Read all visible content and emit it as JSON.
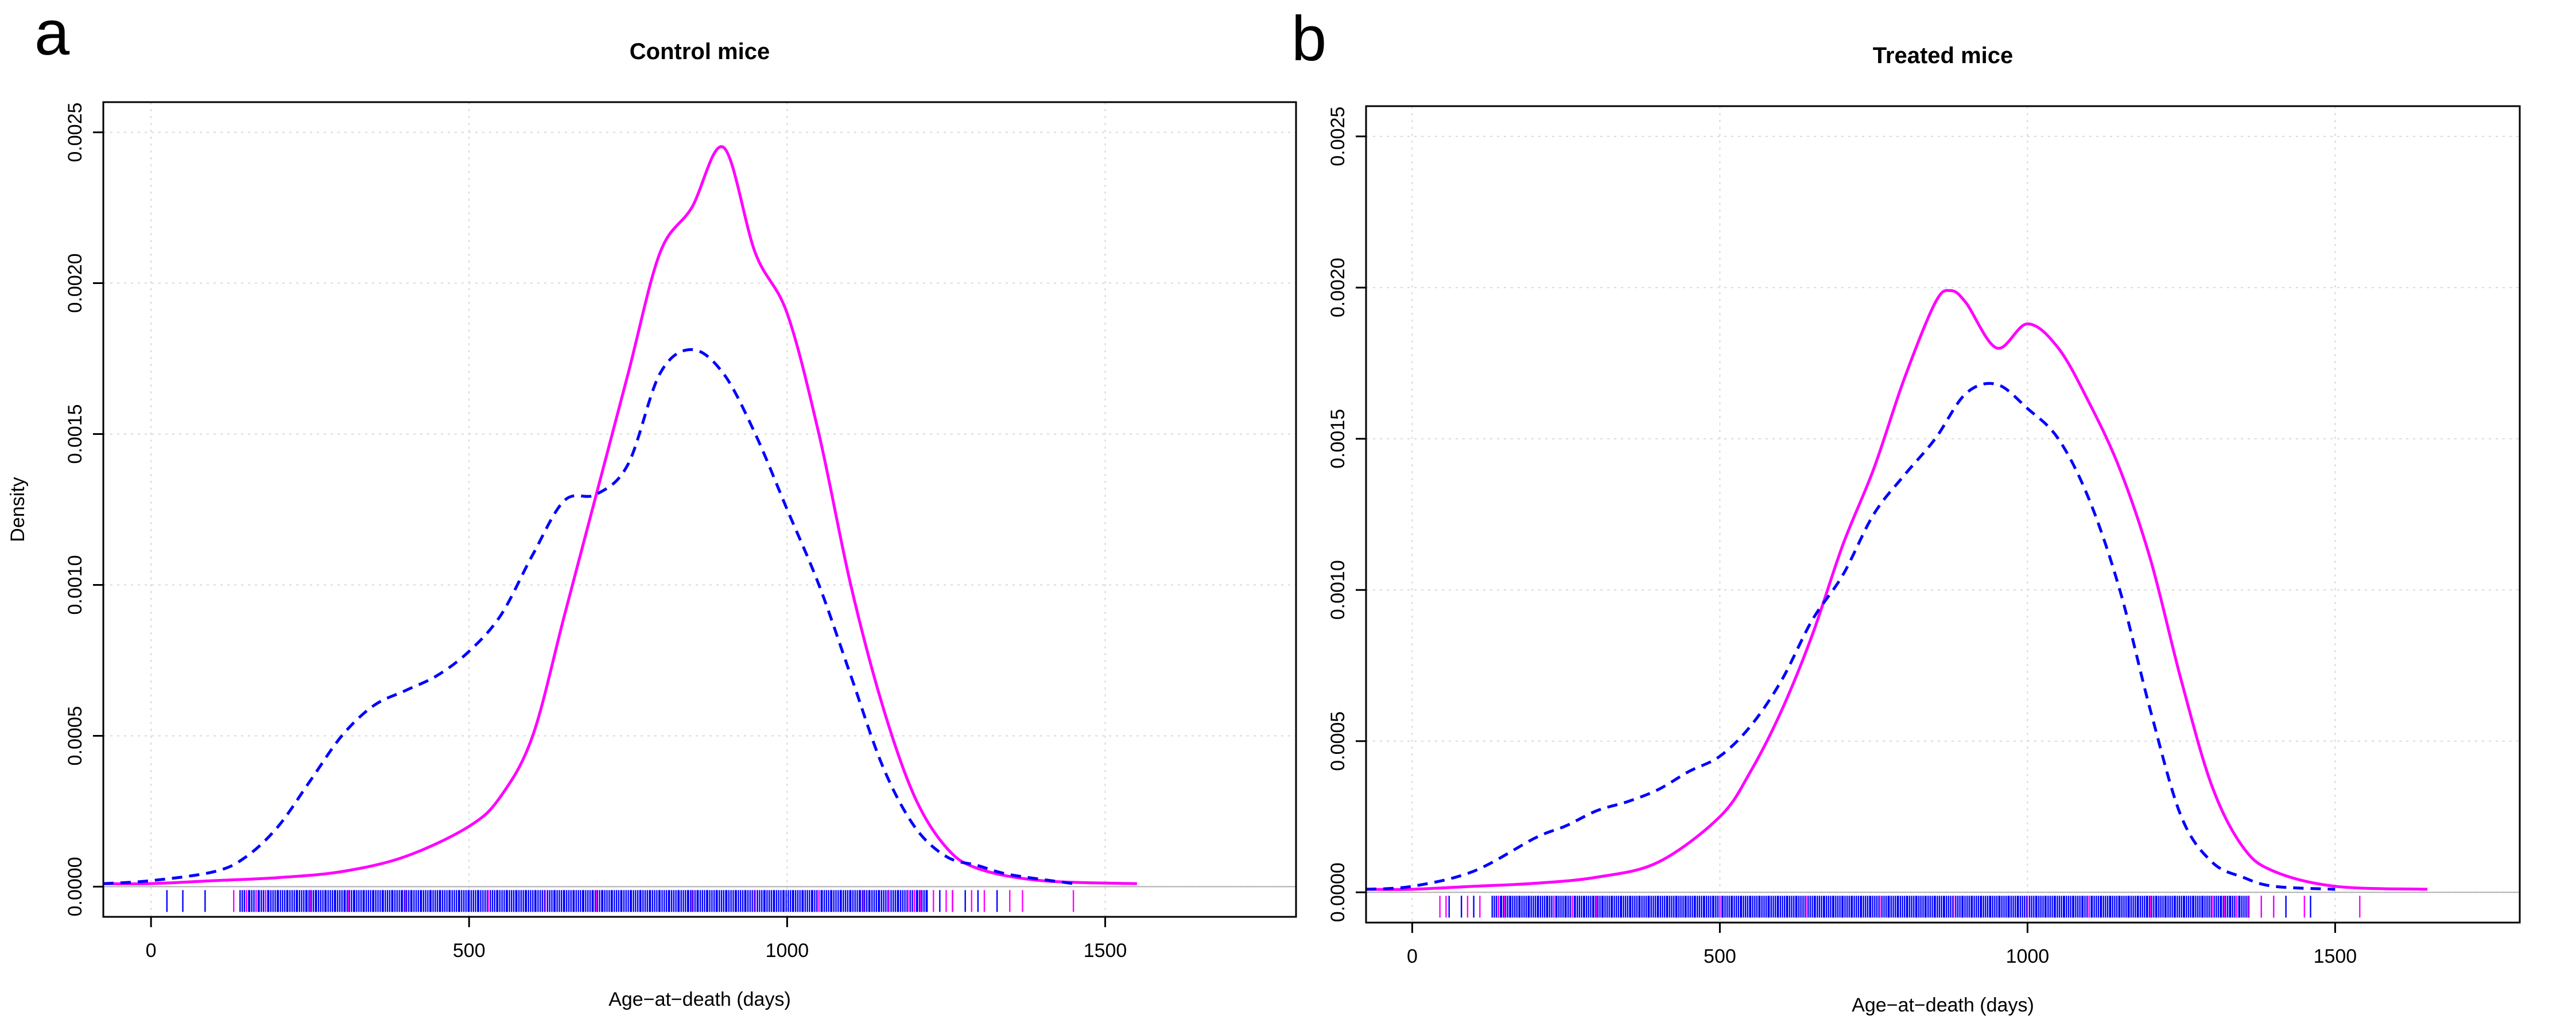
{
  "chart_data": [
    {
      "panel": "a",
      "type": "line",
      "title": "Control mice",
      "xlabel": "Age−at−death (days)",
      "ylabel": "Density",
      "xlim": [
        -75,
        1800
      ],
      "ylim": [
        -0.0001,
        0.0026
      ],
      "xticks": [
        0,
        500,
        1000,
        1500
      ],
      "yticks": [
        "0.0000",
        "0.0005",
        "0.0010",
        "0.0015",
        "0.0020",
        "0.0025"
      ],
      "grid": true,
      "series": [
        {
          "color": "#ff00ff",
          "style": "solid",
          "x": [
            -75,
            0,
            100,
            200,
            300,
            400,
            500,
            550,
            600,
            650,
            700,
            750,
            800,
            850,
            900,
            950,
            1000,
            1050,
            1100,
            1150,
            1200,
            1250,
            1300,
            1400,
            1550
          ],
          "y": [
            1e-05,
            1e-05,
            2e-05,
            3e-05,
            5e-05,
            0.0001,
            0.0002,
            0.0003,
            0.0005,
            0.0009,
            0.0013,
            0.0017,
            0.0021,
            0.00225,
            0.00245,
            0.0021,
            0.0019,
            0.0015,
            0.001,
            0.0006,
            0.0003,
            0.00013,
            6e-05,
            2e-05,
            1e-05
          ]
        },
        {
          "color": "#0000ff",
          "style": "dashed",
          "x": [
            -75,
            0,
            100,
            150,
            200,
            250,
            300,
            350,
            400,
            450,
            500,
            550,
            600,
            650,
            700,
            750,
            800,
            850,
            900,
            950,
            1000,
            1050,
            1100,
            1150,
            1200,
            1250,
            1300,
            1350,
            1450
          ],
          "y": [
            1e-05,
            2e-05,
            5e-05,
            0.0001,
            0.0002,
            0.00035,
            0.0005,
            0.0006,
            0.00065,
            0.0007,
            0.00078,
            0.0009,
            0.0011,
            0.00128,
            0.0013,
            0.0014,
            0.0017,
            0.00178,
            0.0017,
            0.0015,
            0.00125,
            0.001,
            0.0007,
            0.0004,
            0.0002,
            0.0001,
            7e-05,
            4e-05,
            1e-05
          ]
        }
      ],
      "rug": {
        "blue_range": [
          140,
          1220
        ],
        "blue_extra": [
          25,
          50,
          85,
          1240,
          1260,
          1280,
          1300,
          1330
        ],
        "magenta": [
          130,
          150,
          165,
          180,
          250,
          310,
          400,
          530,
          620,
          700,
          850,
          950,
          1050,
          1120,
          1160,
          1190,
          1200,
          1210,
          1230,
          1250,
          1260,
          1290,
          1310,
          1350,
          1370,
          1450
        ]
      }
    },
    {
      "panel": "b",
      "type": "line",
      "title": "Treated mice",
      "xlabel": "Age−at−death (days)",
      "ylabel": "",
      "xlim": [
        -75,
        1800
      ],
      "ylim": [
        -0.0001,
        0.0026
      ],
      "xticks": [
        0,
        500,
        1000,
        1500
      ],
      "yticks": [
        "0.0000",
        "0.0005",
        "0.0010",
        "0.0015",
        "0.0020",
        "0.0025"
      ],
      "grid": true,
      "series": [
        {
          "color": "#ff00ff",
          "style": "solid",
          "x": [
            -75,
            0,
            100,
            200,
            300,
            400,
            500,
            550,
            600,
            650,
            700,
            750,
            800,
            850,
            875,
            900,
            950,
            1000,
            1050,
            1100,
            1150,
            1200,
            1250,
            1300,
            1350,
            1400,
            1500,
            1650
          ],
          "y": [
            1e-05,
            1e-05,
            2e-05,
            3e-05,
            5e-05,
            0.0001,
            0.00025,
            0.0004,
            0.0006,
            0.00085,
            0.00115,
            0.0014,
            0.0017,
            0.00195,
            0.00199,
            0.00195,
            0.0018,
            0.00188,
            0.0018,
            0.00162,
            0.0014,
            0.0011,
            0.0007,
            0.00035,
            0.00015,
            7e-05,
            2e-05,
            1e-05
          ]
        },
        {
          "color": "#0000ff",
          "style": "dashed",
          "x": [
            -75,
            0,
            100,
            200,
            250,
            300,
            350,
            400,
            450,
            500,
            550,
            600,
            650,
            700,
            750,
            800,
            850,
            900,
            950,
            1000,
            1050,
            1100,
            1150,
            1200,
            1250,
            1300,
            1350,
            1400,
            1500
          ],
          "y": [
            1e-05,
            2e-05,
            7e-05,
            0.00018,
            0.00022,
            0.00027,
            0.0003,
            0.00034,
            0.0004,
            0.00045,
            0.00055,
            0.0007,
            0.0009,
            0.00105,
            0.00125,
            0.00138,
            0.0015,
            0.00165,
            0.00168,
            0.0016,
            0.0015,
            0.0013,
            0.001,
            0.0006,
            0.00025,
            0.0001,
            5e-05,
            2e-05,
            1e-05
          ]
        }
      ],
      "rug": {
        "blue_range": [
          130,
          1360
        ],
        "blue_extra": [
          60,
          80,
          100,
          1380,
          1400,
          1420,
          1460
        ],
        "magenta": [
          45,
          55,
          90,
          110,
          140,
          150,
          230,
          260,
          300,
          500,
          640,
          760,
          880,
          1000,
          1100,
          1200,
          1300,
          1320,
          1340,
          1360,
          1380,
          1400,
          1450,
          1540
        ]
      }
    }
  ]
}
